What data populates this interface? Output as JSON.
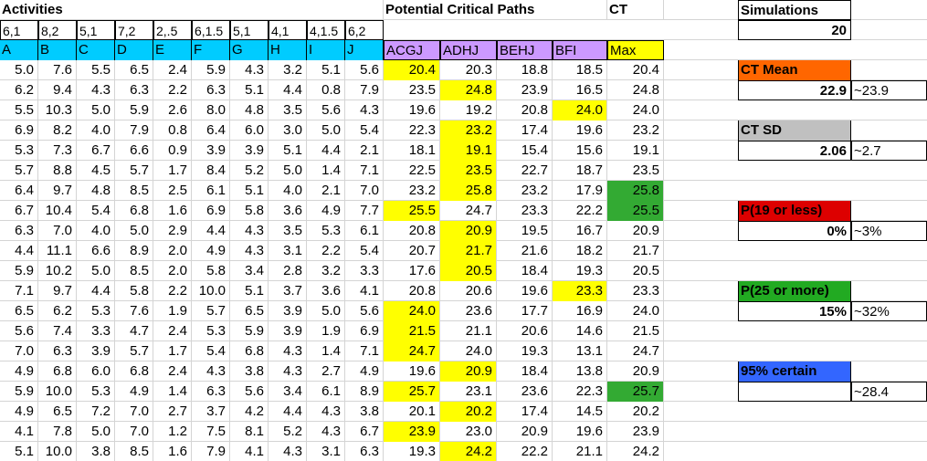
{
  "colors": {
    "activity_header": "#00ccff",
    "path_header": "#cc99ff",
    "max_header": "#ffff00",
    "highlight": "#ffff00",
    "over25": "#33aa33",
    "ct_mean": "#ff6600",
    "ct_sd": "#c0c0c0",
    "p19": "#dd0000",
    "p25": "#22aa22",
    "certain95": "#3366ff"
  },
  "activities": {
    "title": "Activities",
    "estimates": [
      "6,1",
      "8,2",
      "5,1",
      "7,2",
      "2,.5",
      "6,1.5",
      "5,1",
      "4,1",
      "4,1.5",
      "6,2"
    ],
    "labels": [
      "A",
      "B",
      "C",
      "D",
      "E",
      "F",
      "G",
      "H",
      "I",
      "J"
    ],
    "rows": [
      [
        "5.0",
        "7.6",
        "5.5",
        "6.5",
        "2.4",
        "5.9",
        "4.3",
        "3.2",
        "5.1",
        "5.6"
      ],
      [
        "6.2",
        "9.4",
        "4.3",
        "6.3",
        "2.2",
        "6.3",
        "5.1",
        "4.4",
        "0.8",
        "7.9"
      ],
      [
        "5.5",
        "10.3",
        "5.0",
        "5.9",
        "2.6",
        "8.0",
        "4.8",
        "3.5",
        "5.6",
        "4.3"
      ],
      [
        "6.9",
        "8.2",
        "4.0",
        "7.9",
        "0.8",
        "6.4",
        "6.0",
        "3.0",
        "5.0",
        "5.4"
      ],
      [
        "5.3",
        "7.3",
        "6.7",
        "6.6",
        "0.9",
        "3.9",
        "3.9",
        "5.1",
        "4.4",
        "2.1"
      ],
      [
        "5.7",
        "8.8",
        "4.5",
        "5.7",
        "1.7",
        "8.4",
        "5.2",
        "5.0",
        "1.4",
        "7.1"
      ],
      [
        "6.4",
        "9.7",
        "4.8",
        "8.5",
        "2.5",
        "6.1",
        "5.1",
        "4.0",
        "2.1",
        "7.0"
      ],
      [
        "6.7",
        "10.4",
        "5.4",
        "6.8",
        "1.6",
        "6.9",
        "5.8",
        "3.6",
        "4.9",
        "7.7"
      ],
      [
        "6.3",
        "7.0",
        "4.0",
        "5.0",
        "2.9",
        "4.4",
        "4.3",
        "3.5",
        "5.3",
        "6.1"
      ],
      [
        "4.4",
        "11.1",
        "6.6",
        "8.9",
        "2.0",
        "4.9",
        "4.3",
        "3.1",
        "2.2",
        "5.4"
      ],
      [
        "5.9",
        "10.2",
        "5.0",
        "8.5",
        "2.0",
        "5.8",
        "3.4",
        "2.8",
        "3.2",
        "3.3"
      ],
      [
        "7.1",
        "9.7",
        "4.4",
        "5.8",
        "2.2",
        "10.0",
        "5.1",
        "3.7",
        "3.6",
        "4.1"
      ],
      [
        "6.5",
        "6.2",
        "5.3",
        "7.6",
        "1.9",
        "5.7",
        "6.5",
        "3.9",
        "5.0",
        "5.6"
      ],
      [
        "5.6",
        "7.4",
        "3.3",
        "4.7",
        "2.4",
        "5.3",
        "5.9",
        "3.9",
        "1.9",
        "6.9"
      ],
      [
        "7.0",
        "6.3",
        "3.9",
        "5.7",
        "1.7",
        "5.4",
        "6.8",
        "4.3",
        "1.4",
        "7.1"
      ],
      [
        "4.9",
        "6.8",
        "6.0",
        "6.8",
        "2.4",
        "4.3",
        "3.8",
        "4.3",
        "2.7",
        "4.9"
      ],
      [
        "5.9",
        "10.0",
        "5.3",
        "4.9",
        "1.4",
        "6.3",
        "5.6",
        "3.4",
        "6.1",
        "8.9"
      ],
      [
        "4.9",
        "6.5",
        "7.2",
        "7.0",
        "2.7",
        "3.7",
        "4.2",
        "4.4",
        "4.3",
        "3.8"
      ],
      [
        "4.1",
        "7.8",
        "5.0",
        "7.0",
        "1.2",
        "7.5",
        "8.1",
        "5.2",
        "4.3",
        "6.7"
      ],
      [
        "5.1",
        "10.0",
        "3.8",
        "8.5",
        "1.6",
        "7.9",
        "4.1",
        "4.3",
        "3.1",
        "6.3"
      ]
    ]
  },
  "paths": {
    "title": "Potential Critical Paths",
    "labels": [
      "ACGJ",
      "ADHJ",
      "BEHJ",
      "BFI"
    ],
    "rows": [
      [
        "20.4",
        "20.3",
        "18.8",
        "18.5"
      ],
      [
        "23.5",
        "24.8",
        "23.9",
        "16.5"
      ],
      [
        "19.6",
        "19.2",
        "20.8",
        "24.0"
      ],
      [
        "22.3",
        "23.2",
        "17.4",
        "19.6"
      ],
      [
        "18.1",
        "19.1",
        "15.4",
        "15.6"
      ],
      [
        "22.5",
        "23.5",
        "22.7",
        "18.7"
      ],
      [
        "23.2",
        "25.8",
        "23.2",
        "17.9"
      ],
      [
        "25.5",
        "24.7",
        "23.3",
        "22.2"
      ],
      [
        "20.8",
        "20.9",
        "19.5",
        "16.7"
      ],
      [
        "20.7",
        "21.7",
        "21.6",
        "18.2"
      ],
      [
        "17.6",
        "20.5",
        "18.4",
        "19.3"
      ],
      [
        "20.8",
        "20.6",
        "19.6",
        "23.3"
      ],
      [
        "24.0",
        "23.6",
        "17.7",
        "16.9"
      ],
      [
        "21.5",
        "21.1",
        "20.6",
        "14.6"
      ],
      [
        "24.7",
        "24.0",
        "19.3",
        "13.1"
      ],
      [
        "19.6",
        "20.9",
        "18.4",
        "13.8"
      ],
      [
        "25.7",
        "23.1",
        "23.6",
        "22.3"
      ],
      [
        "20.1",
        "20.2",
        "17.4",
        "14.5"
      ],
      [
        "23.9",
        "23.0",
        "20.9",
        "19.6"
      ],
      [
        "19.3",
        "24.2",
        "22.2",
        "21.1"
      ]
    ]
  },
  "ct": {
    "title": "CT",
    "label": "Max",
    "values": [
      "20.4",
      "24.8",
      "24.0",
      "23.2",
      "19.1",
      "23.5",
      "25.8",
      "25.5",
      "20.9",
      "21.7",
      "20.5",
      "23.3",
      "24.0",
      "21.5",
      "24.7",
      "20.9",
      "25.7",
      "20.2",
      "23.9",
      "24.2"
    ]
  },
  "summary": {
    "simulations_label": "Simulations",
    "simulations": "20",
    "ct_mean_label": "CT Mean",
    "ct_mean": "22.9",
    "ct_mean_approx": "~23.9",
    "ct_sd_label": "CT SD",
    "ct_sd": "2.06",
    "ct_sd_approx": "~2.7",
    "p19_label": "P(19 or less)",
    "p19": "0%",
    "p19_approx": "~3%",
    "p25_label": "P(25 or more)",
    "p25": "15%",
    "p25_approx": "~32%",
    "certain95_label": "95% certain",
    "certain95": "",
    "certain95_approx": "~28.4"
  }
}
